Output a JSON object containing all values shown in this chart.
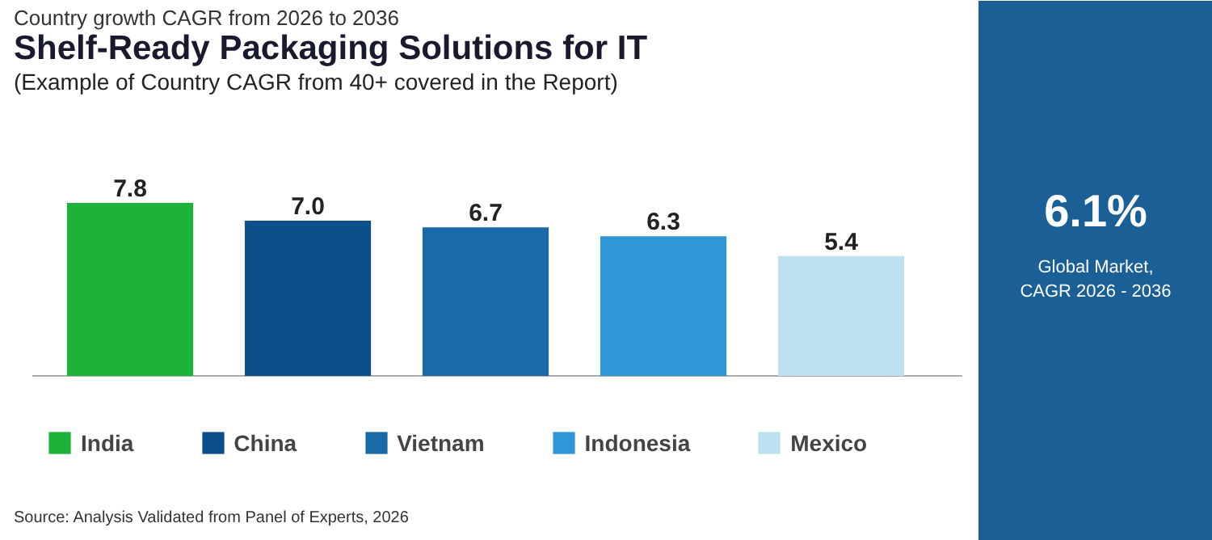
{
  "chart_data": [
    {
      "type": "bar",
      "title": "Shelf-Ready Packaging Solutions for IT",
      "subtitle": "(Example of Country CAGR from 40+ covered in the Report)",
      "categories": [
        null,
        null,
        null,
        null,
        null
      ],
      "stacked": true,
      "series": [
        {
          "name": "India",
          "color": "#1db33a",
          "values": [
            7.8,
            null,
            null,
            null,
            null
          ],
          "value_labels": [
            "7.8",
            null,
            null,
            null,
            null
          ]
        },
        {
          "name": "China",
          "color": "#0d4f8b",
          "values": [
            null,
            7.0,
            null,
            null,
            null
          ],
          "value_labels": [
            null,
            "7.0",
            null,
            null,
            null
          ]
        },
        {
          "name": "Vietnam",
          "color": "#1a6aa8",
          "values": [
            null,
            null,
            6.7,
            null,
            null
          ],
          "value_labels": [
            null,
            null,
            "6.7",
            null,
            null
          ]
        },
        {
          "name": "Indonesia",
          "color": "#3097d6",
          "values": [
            null,
            null,
            null,
            6.3,
            null
          ],
          "value_labels": [
            null,
            null,
            null,
            "6.3",
            null
          ]
        },
        {
          "name": "Mexico",
          "color": "#bfe0f0",
          "values": [
            null,
            null,
            null,
            null,
            5.4
          ],
          "value_labels": [
            null,
            null,
            null,
            null,
            "5.4"
          ]
        }
      ],
      "grid": false,
      "legend": "bottom",
      "annotations": [
        "Country growth CAGR from 2026 to 2036",
        "Source: Analysis Validated from Panel of Experts, 2026"
      ]
    },
    {
      "type": "other",
      "annotations": [
        "6.1%",
        "Global Market,",
        "CAGR 2026 - 2036"
      ]
    }
  ]
}
